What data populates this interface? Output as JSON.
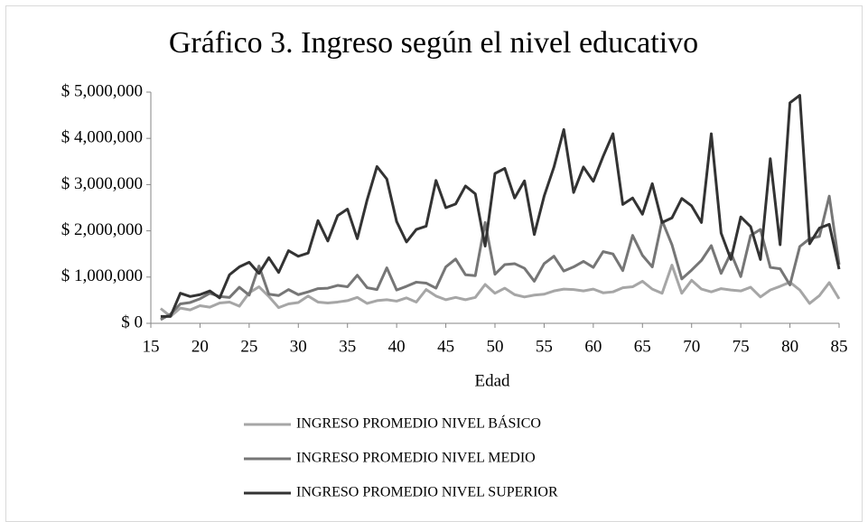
{
  "chart_data": {
    "type": "line",
    "title": "Gráfico 3. Ingreso según el nivel educativo",
    "x_label": "Edad",
    "x": [
      16,
      17,
      18,
      19,
      20,
      21,
      22,
      23,
      24,
      25,
      26,
      27,
      28,
      29,
      30,
      31,
      32,
      33,
      34,
      35,
      36,
      37,
      38,
      39,
      40,
      41,
      42,
      43,
      44,
      45,
      46,
      47,
      48,
      49,
      50,
      51,
      52,
      53,
      54,
      55,
      56,
      57,
      58,
      59,
      60,
      61,
      62,
      63,
      64,
      65,
      66,
      67,
      68,
      69,
      70,
      71,
      72,
      73,
      74,
      75,
      76,
      77,
      78,
      79,
      80,
      81,
      82,
      83,
      84,
      85
    ],
    "xlim": [
      15,
      85
    ],
    "xticks": [
      15,
      20,
      25,
      30,
      35,
      40,
      45,
      50,
      55,
      60,
      65,
      70,
      75,
      80,
      85
    ],
    "ylim": [
      0,
      5000000
    ],
    "yticks": [
      {
        "value": 0,
        "label": "$ 0"
      },
      {
        "value": 1000000,
        "label": "$ 1,000,000"
      },
      {
        "value": 2000000,
        "label": "$ 2,000,000"
      },
      {
        "value": 3000000,
        "label": "$ 3,000,000"
      },
      {
        "value": 4000000,
        "label": "$ 4,000,000"
      },
      {
        "value": 5000000,
        "label": "$ 5,000,000"
      }
    ],
    "legend": "bottom",
    "series": [
      {
        "name": "INGRESO PROMEDIO NIVEL BÁSICO",
        "color": "#a6a6a6",
        "values": [
          320000,
          150000,
          330000,
          290000,
          380000,
          350000,
          440000,
          460000,
          370000,
          660000,
          790000,
          580000,
          340000,
          420000,
          450000,
          590000,
          460000,
          440000,
          460000,
          490000,
          560000,
          430000,
          490000,
          510000,
          480000,
          550000,
          460000,
          730000,
          590000,
          510000,
          560000,
          510000,
          560000,
          840000,
          650000,
          760000,
          620000,
          570000,
          610000,
          630000,
          700000,
          740000,
          730000,
          700000,
          740000,
          660000,
          680000,
          770000,
          790000,
          910000,
          740000,
          650000,
          1260000,
          650000,
          930000,
          740000,
          680000,
          750000,
          720000,
          700000,
          780000,
          570000,
          720000,
          800000,
          890000,
          720000,
          430000,
          600000,
          880000,
          530000
        ]
      },
      {
        "name": "INGRESO PROMEDIO NIVEL MEDIO",
        "color": "#767676",
        "values": [
          80000,
          200000,
          420000,
          450000,
          530000,
          650000,
          580000,
          560000,
          780000,
          610000,
          1240000,
          630000,
          600000,
          730000,
          620000,
          680000,
          750000,
          760000,
          820000,
          790000,
          1040000,
          770000,
          730000,
          1200000,
          720000,
          800000,
          890000,
          870000,
          760000,
          1220000,
          1390000,
          1050000,
          1030000,
          2180000,
          1060000,
          1270000,
          1290000,
          1190000,
          910000,
          1290000,
          1450000,
          1130000,
          1220000,
          1340000,
          1210000,
          1550000,
          1500000,
          1140000,
          1900000,
          1470000,
          1220000,
          2220000,
          1700000,
          960000,
          1150000,
          1360000,
          1680000,
          1080000,
          1520000,
          1010000,
          1900000,
          2030000,
          1210000,
          1180000,
          830000,
          1660000,
          1830000,
          1880000,
          2750000,
          1270000
        ]
      },
      {
        "name": "INGRESO PROMEDIO NIVEL SUPERIOR",
        "color": "#333333",
        "values": [
          150000,
          150000,
          650000,
          580000,
          620000,
          700000,
          550000,
          1050000,
          1220000,
          1320000,
          1080000,
          1420000,
          1100000,
          1570000,
          1450000,
          1520000,
          2220000,
          1780000,
          2330000,
          2470000,
          1830000,
          2670000,
          3390000,
          3120000,
          2200000,
          1760000,
          2030000,
          2100000,
          3090000,
          2500000,
          2580000,
          2970000,
          2800000,
          1670000,
          3240000,
          3350000,
          2710000,
          3080000,
          1920000,
          2750000,
          3380000,
          4190000,
          2830000,
          3380000,
          3070000,
          3610000,
          4100000,
          2570000,
          2710000,
          2360000,
          3020000,
          2180000,
          2280000,
          2700000,
          2540000,
          2180000,
          4100000,
          1950000,
          1380000,
          2300000,
          2090000,
          1380000,
          3560000,
          1700000,
          4770000,
          4930000,
          1720000,
          2060000,
          2140000,
          1170000
        ]
      }
    ]
  }
}
